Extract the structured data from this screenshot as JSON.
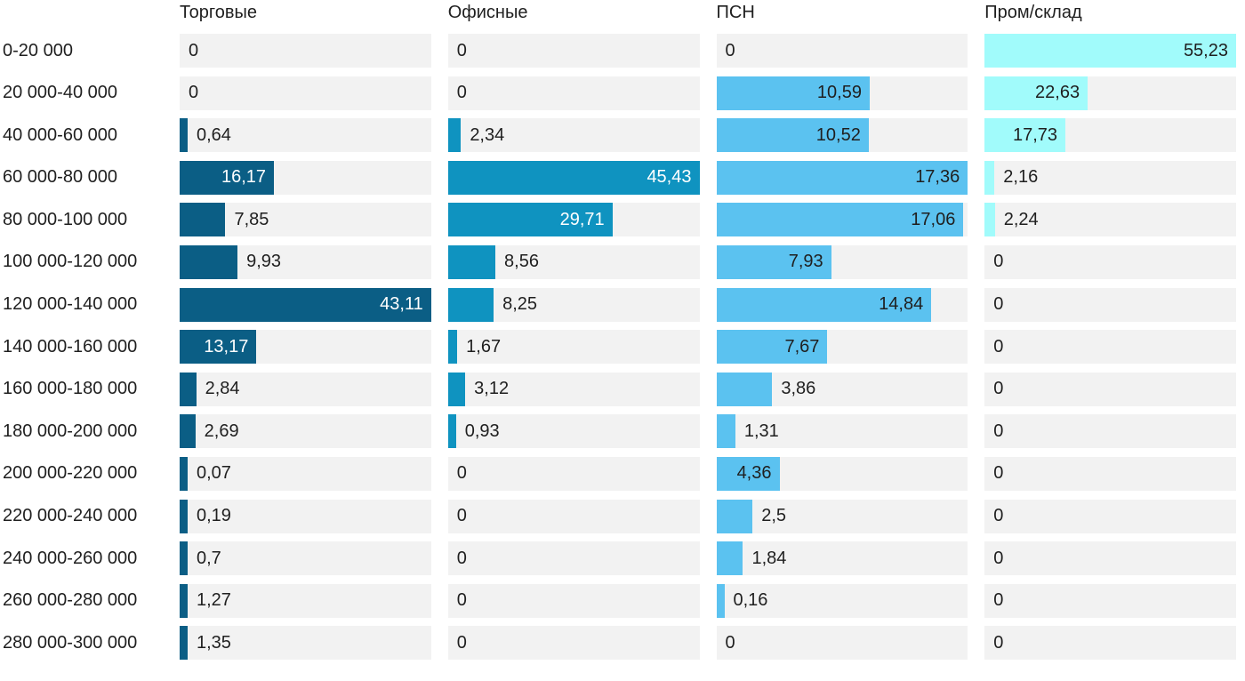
{
  "chart_data": {
    "type": "bar",
    "orientation": "horizontal",
    "title": "",
    "value_format": "decimal-comma",
    "grid": false,
    "track_color": "#f2f2f2",
    "text_color": "#1f1f1f",
    "scaling": "per_series_max",
    "categories": [
      "0-20 000",
      "20 000-40 000",
      "40 000-60 000",
      "60 000-80 000",
      "80 000-100 000",
      "100 000-120 000",
      "120 000-140 000",
      "140 000-160 000",
      "160 000-180 000",
      "180 000-200 000",
      "200 000-220 000",
      "220 000-240 000",
      "240 000-260 000",
      "260 000-280 000",
      "280 000-300 000"
    ],
    "series": [
      {
        "name": "Торговые",
        "color": "#0b5e85",
        "inside_label_color": "#ffffff",
        "values": [
          0,
          0,
          0.64,
          16.17,
          7.85,
          9.93,
          43.11,
          13.17,
          2.84,
          2.69,
          0.07,
          0.19,
          0.7,
          1.27,
          1.35
        ]
      },
      {
        "name": "Офисные",
        "color": "#0f93c0",
        "inside_label_color": "#ffffff",
        "values": [
          0,
          0,
          2.34,
          45.43,
          29.71,
          8.56,
          8.25,
          1.67,
          3.12,
          0.93,
          0,
          0,
          0,
          0,
          0
        ]
      },
      {
        "name": "ПСН",
        "color": "#5bc2f0",
        "inside_label_color": "#1f1f1f",
        "values": [
          0,
          10.59,
          10.52,
          17.36,
          17.06,
          7.93,
          14.84,
          7.67,
          3.86,
          1.31,
          4.36,
          2.5,
          1.84,
          0.16,
          0
        ]
      },
      {
        "name": "Пром/склад",
        "color": "#a1fbfb",
        "inside_label_color": "#1f1f1f",
        "values": [
          55.23,
          22.63,
          17.73,
          2.16,
          2.24,
          0,
          0,
          0,
          0,
          0,
          0,
          0,
          0,
          0,
          0
        ]
      }
    ]
  }
}
